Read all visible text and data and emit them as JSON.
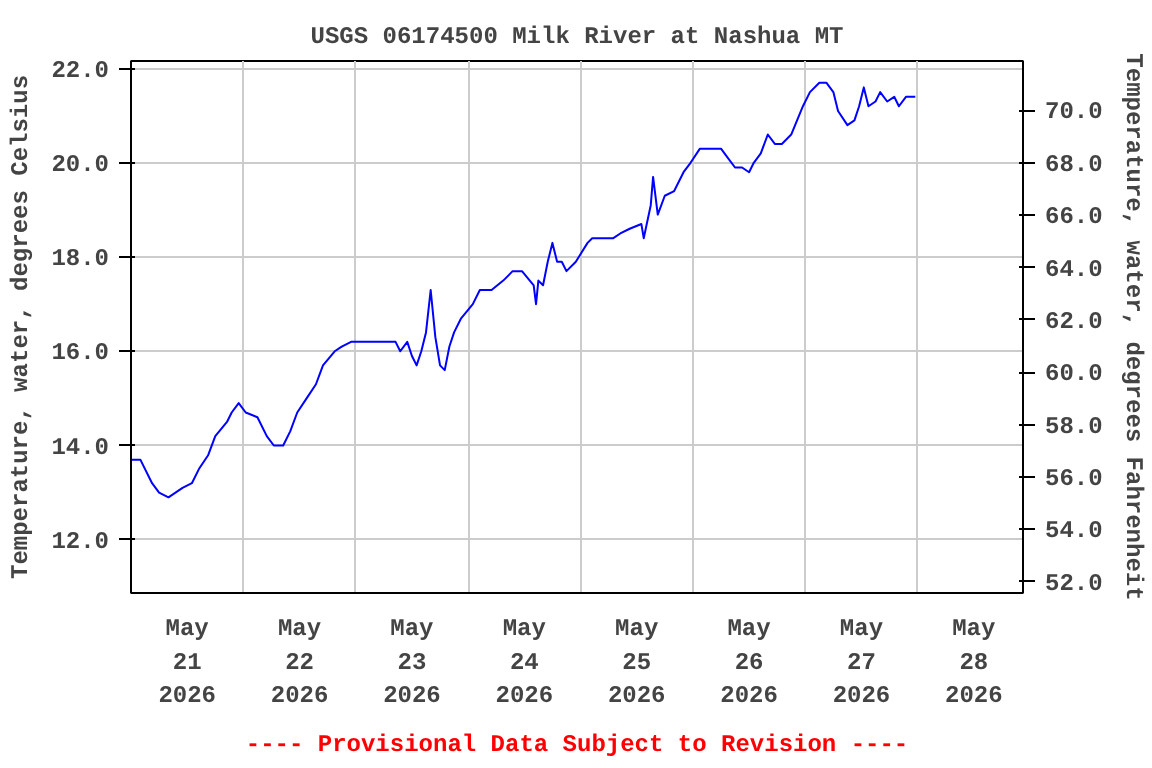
{
  "chart_data": {
    "type": "line",
    "title": "USGS 06174500 Milk River at Nashua MT",
    "ylabel": "Temperature, water, degrees Celsius",
    "y2label": "Temperature, water, degrees Fahrenheit",
    "annotations": [
      "---- Provisional Data Subject to Revision ----"
    ],
    "xlim": [
      "2026-05-21T00:00",
      "2026-05-28T22:30"
    ],
    "xticks": [
      {
        "value": "2026-05-21T12:00",
        "label": "May\n21\n2026"
      },
      {
        "value": "2026-05-22T00:00",
        "label": null
      },
      {
        "value": "2026-05-22T12:00",
        "label": "May\n22\n2026"
      },
      {
        "value": "2026-05-23T00:00",
        "label": null
      },
      {
        "value": "2026-05-23T12:00",
        "label": "May\n23\n2026"
      },
      {
        "value": "2026-05-24T00:00",
        "label": null
      },
      {
        "value": "2026-05-24T12:00",
        "label": "May\n24\n2026"
      },
      {
        "value": "2026-05-25T00:00",
        "label": null
      },
      {
        "value": "2026-05-25T12:00",
        "label": "May\n25\n2026"
      },
      {
        "value": "2026-05-26T00:00",
        "label": null
      },
      {
        "value": "2026-05-26T12:00",
        "label": "May\n26\n2026"
      },
      {
        "value": "2026-05-27T00:00",
        "label": null
      },
      {
        "value": "2026-05-27T12:00",
        "label": "May\n27\n2026"
      },
      {
        "value": "2026-05-28T00:00",
        "label": null
      },
      {
        "value": "2026-05-28T12:00",
        "label": "May\n28\n2026"
      }
    ],
    "ylim": [
      10.87,
      22.16
    ],
    "yticks": [
      {
        "value": 12,
        "label": "12.0"
      },
      {
        "value": 14,
        "label": "14.0"
      },
      {
        "value": 16,
        "label": "16.0"
      },
      {
        "value": 18,
        "label": "18.0"
      },
      {
        "value": 20,
        "label": "20.0"
      },
      {
        "value": 22,
        "label": "22.0"
      }
    ],
    "y2lim": [
      51.57,
      71.89
    ],
    "y2ticks": [
      {
        "value": 52,
        "label": "52.0"
      },
      {
        "value": 54,
        "label": "54.0"
      },
      {
        "value": 56,
        "label": "56.0"
      },
      {
        "value": 58,
        "label": "58.0"
      },
      {
        "value": 60,
        "label": "60.0"
      },
      {
        "value": 62,
        "label": "62.0"
      },
      {
        "value": 64,
        "label": "64.0"
      },
      {
        "value": 66,
        "label": "66.0"
      },
      {
        "value": 68,
        "label": "68.0"
      },
      {
        "value": 70,
        "label": "70.0"
      }
    ],
    "grid": true,
    "line_style": "solid",
    "x": [
      "2026-05-21T00:00",
      "2026-05-21T02:00",
      "2026-05-21T03:00",
      "2026-05-21T04:30",
      "2026-05-21T06:00",
      "2026-05-21T08:00",
      "2026-05-21T09:30",
      "2026-05-21T11:00",
      "2026-05-21T13:00",
      "2026-05-21T14:30",
      "2026-05-21T16:30",
      "2026-05-21T18:00",
      "2026-05-21T20:30",
      "2026-05-21T21:30",
      "2026-05-21T23:00",
      "2026-05-22T00:30",
      "2026-05-22T03:00",
      "2026-05-22T05:00",
      "2026-05-22T06:30",
      "2026-05-22T08:30",
      "2026-05-22T10:00",
      "2026-05-22T11:30",
      "2026-05-22T13:30",
      "2026-05-22T15:30",
      "2026-05-22T17:00",
      "2026-05-22T19:30",
      "2026-05-22T21:00",
      "2026-05-22T23:00",
      "2026-05-23T02:00",
      "2026-05-23T04:30",
      "2026-05-23T08:30",
      "2026-05-23T09:30",
      "2026-05-23T11:00",
      "2026-05-23T12:00",
      "2026-05-23T13:00",
      "2026-05-23T14:00",
      "2026-05-23T15:00",
      "2026-05-23T16:00",
      "2026-05-23T17:00",
      "2026-05-23T18:00",
      "2026-05-23T19:00",
      "2026-05-23T20:00",
      "2026-05-23T21:00",
      "2026-05-23T22:30",
      "2026-05-24T01:00",
      "2026-05-24T02:30",
      "2026-05-24T05:00",
      "2026-05-24T07:30",
      "2026-05-24T09:30",
      "2026-05-24T11:30",
      "2026-05-24T14:00",
      "2026-05-24T14:30",
      "2026-05-24T15:00",
      "2026-05-24T16:00",
      "2026-05-24T17:00",
      "2026-05-24T18:00",
      "2026-05-24T19:00",
      "2026-05-24T20:00",
      "2026-05-24T21:00",
      "2026-05-24T23:00",
      "2026-05-25T01:30",
      "2026-05-25T02:30",
      "2026-05-25T07:00",
      "2026-05-25T08:30",
      "2026-05-25T10:30",
      "2026-05-25T13:00",
      "2026-05-25T13:30",
      "2026-05-25T15:00",
      "2026-05-25T15:30",
      "2026-05-25T16:30",
      "2026-05-25T18:00",
      "2026-05-25T20:00",
      "2026-05-25T22:00",
      "2026-05-25T23:30",
      "2026-05-26T01:30",
      "2026-05-26T04:00",
      "2026-05-26T06:00",
      "2026-05-26T07:30",
      "2026-05-26T09:00",
      "2026-05-26T10:30",
      "2026-05-26T12:00",
      "2026-05-26T13:00",
      "2026-05-26T14:30",
      "2026-05-26T16:00",
      "2026-05-26T17:30",
      "2026-05-26T19:00",
      "2026-05-26T21:00",
      "2026-05-26T23:30",
      "2026-05-27T01:00",
      "2026-05-27T03:00",
      "2026-05-27T04:30",
      "2026-05-27T06:00",
      "2026-05-27T07:00",
      "2026-05-27T09:00",
      "2026-05-27T10:30",
      "2026-05-27T11:30",
      "2026-05-27T12:30",
      "2026-05-27T13:30",
      "2026-05-27T15:00",
      "2026-05-27T16:00",
      "2026-05-27T17:30",
      "2026-05-27T19:00",
      "2026-05-27T20:00",
      "2026-05-27T21:30",
      "2026-05-27T22:30",
      "2026-05-27T23:30"
    ],
    "series": [
      {
        "color": "#0000ff",
        "values": [
          13.7,
          13.7,
          13.5,
          13.2,
          13.0,
          12.9,
          13.0,
          13.1,
          13.2,
          13.5,
          13.8,
          14.2,
          14.5,
          14.7,
          14.9,
          14.7,
          14.6,
          14.2,
          14.0,
          14.0,
          14.3,
          14.7,
          15.0,
          15.3,
          15.7,
          16.0,
          16.1,
          16.2,
          16.2,
          16.2,
          16.2,
          16.0,
          16.2,
          15.9,
          15.7,
          16.0,
          16.4,
          17.3,
          16.3,
          15.7,
          15.6,
          16.1,
          16.4,
          16.7,
          17.0,
          17.3,
          17.3,
          17.5,
          17.7,
          17.7,
          17.4,
          17.0,
          17.5,
          17.4,
          17.9,
          18.3,
          17.9,
          17.9,
          17.7,
          17.9,
          18.3,
          18.4,
          18.4,
          18.5,
          18.6,
          18.7,
          18.4,
          19.1,
          19.7,
          18.9,
          19.3,
          19.4,
          19.8,
          20.0,
          20.3,
          20.3,
          20.3,
          20.1,
          19.9,
          19.9,
          19.8,
          20.0,
          20.2,
          20.6,
          20.4,
          20.4,
          20.6,
          21.2,
          21.5,
          21.7,
          21.7,
          21.5,
          21.1,
          20.8,
          20.9,
          21.2,
          21.6,
          21.2,
          21.3,
          21.5,
          21.3,
          21.4,
          21.2,
          21.4,
          21.4,
          21.4
        ]
      }
    ]
  }
}
